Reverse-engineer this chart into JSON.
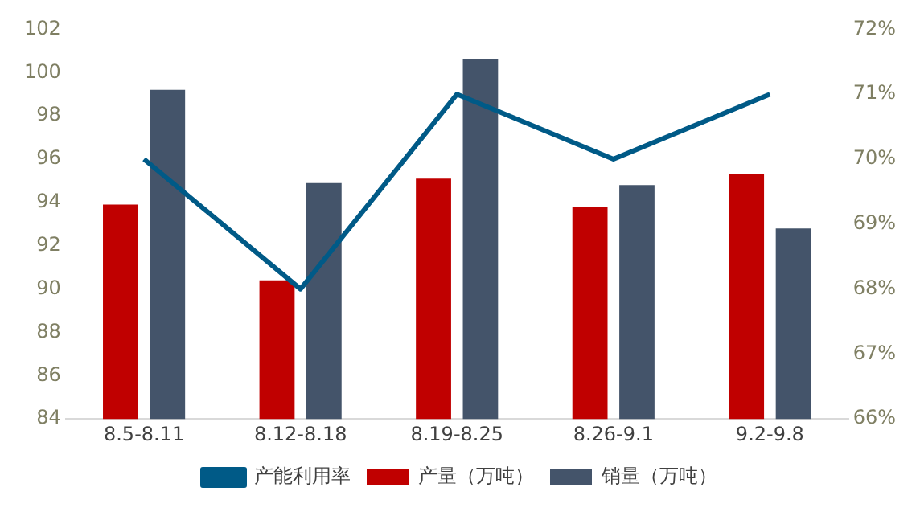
{
  "chart_data": {
    "type": "bar",
    "categories": [
      "8.5-8.11",
      "8.12-8.18",
      "8.19-8.25",
      "8.26-9.1",
      "9.2-9.8"
    ],
    "series": [
      {
        "name": "产量（万吨）",
        "color": "#c00000",
        "values": [
          93.9,
          90.4,
          95.1,
          93.8,
          95.3
        ]
      },
      {
        "name": "销量（万吨）",
        "color": "#44546a",
        "values": [
          99.2,
          94.9,
          100.6,
          94.8,
          92.8
        ]
      },
      {
        "name": "产能利用率",
        "type": "line",
        "axis": "y2",
        "color": "#005a87",
        "values": [
          70,
          68,
          71,
          70,
          71
        ]
      }
    ],
    "ylim": [
      84,
      102
    ],
    "yticks": [
      84,
      86,
      88,
      90,
      92,
      94,
      96,
      98,
      100,
      102
    ],
    "y2lim": [
      66,
      72
    ],
    "y2ticks": [
      {
        "value": 66,
        "label": "66%"
      },
      {
        "value": 67,
        "label": "67%"
      },
      {
        "value": 68,
        "label": "68%"
      },
      {
        "value": 69,
        "label": "69%"
      },
      {
        "value": 70,
        "label": "70%"
      },
      {
        "value": 71,
        "label": "71%"
      },
      {
        "value": 72,
        "label": "72%"
      }
    ],
    "grid": false,
    "legend": "bottom",
    "marker": "none"
  }
}
